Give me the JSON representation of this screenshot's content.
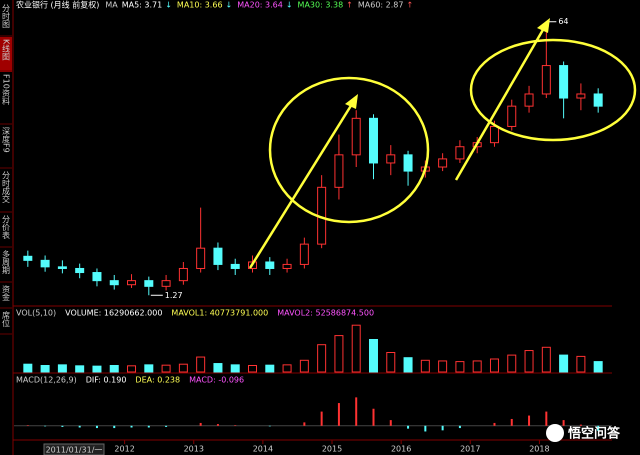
{
  "app": {
    "sidebar": [
      "分时图",
      "K线图",
      "F10资料",
      "深度F9",
      "分时成交",
      "分价表",
      "多周期",
      "资金",
      "席位"
    ],
    "header": {
      "title": "农业银行 (月线 前复权)",
      "ma_label": "MA",
      "items": [
        {
          "text": "MA5: 3.71",
          "color": "#ffffff",
          "arrow": "↓",
          "arrow_color": "#54fcfc"
        },
        {
          "text": "MA10: 3.66",
          "color": "#ffff54",
          "arrow": "↓",
          "arrow_color": "#54fcfc"
        },
        {
          "text": "MA20: 3.64",
          "color": "#ff54ff",
          "arrow": "↓",
          "arrow_color": "#54fcfc"
        },
        {
          "text": "MA30: 3.38",
          "color": "#54ff54",
          "arrow": "↑",
          "arrow_color": "#ff5454"
        },
        {
          "text": "MA60: 2.87",
          "color": "#cccccc",
          "arrow": "↑",
          "arrow_color": "#ff5454"
        }
      ]
    },
    "cursor_date": "2011/01/31/一",
    "watermark": "悟空问答"
  },
  "chart_data": {
    "type": "candlestick",
    "x": [
      2010.6,
      2010.85,
      2011.1,
      2011.35,
      2011.6,
      2011.85,
      2012.1,
      2012.35,
      2012.6,
      2012.85,
      2013.1,
      2013.35,
      2013.6,
      2013.85,
      2014.1,
      2014.35,
      2014.6,
      2014.85,
      2015.1,
      2015.35,
      2015.6,
      2015.85,
      2016.1,
      2016.35,
      2016.6,
      2016.85,
      2017.1,
      2017.35,
      2017.6,
      2017.85,
      2018.1,
      2018.35,
      2018.6,
      2018.85
    ],
    "open": [
      1.75,
      1.7,
      1.62,
      1.6,
      1.55,
      1.45,
      1.4,
      1.45,
      1.38,
      1.45,
      1.6,
      1.85,
      1.65,
      1.6,
      1.68,
      1.6,
      1.65,
      1.9,
      2.6,
      3.0,
      3.45,
      2.9,
      3.0,
      2.8,
      2.85,
      2.95,
      3.1,
      3.15,
      3.35,
      3.6,
      3.75,
      4.1,
      3.7,
      3.75
    ],
    "high": [
      1.82,
      1.76,
      1.7,
      1.66,
      1.6,
      1.52,
      1.53,
      1.5,
      1.52,
      1.68,
      2.35,
      1.92,
      1.72,
      1.76,
      1.74,
      1.72,
      1.98,
      2.75,
      3.25,
      3.55,
      3.5,
      3.12,
      3.05,
      2.93,
      3.02,
      3.18,
      3.22,
      3.42,
      3.68,
      3.85,
      4.64,
      4.15,
      3.88,
      3.82
    ],
    "low": [
      1.62,
      1.56,
      1.54,
      1.48,
      1.38,
      1.34,
      1.36,
      1.27,
      1.33,
      1.4,
      1.55,
      1.58,
      1.52,
      1.55,
      1.52,
      1.55,
      1.6,
      1.85,
      2.45,
      2.85,
      2.7,
      2.75,
      2.62,
      2.72,
      2.8,
      2.9,
      3.02,
      3.1,
      3.3,
      3.52,
      3.7,
      3.45,
      3.55,
      3.52
    ],
    "close": [
      1.7,
      1.62,
      1.6,
      1.55,
      1.45,
      1.4,
      1.45,
      1.38,
      1.45,
      1.6,
      1.85,
      1.65,
      1.6,
      1.68,
      1.6,
      1.65,
      1.9,
      2.6,
      3.0,
      3.45,
      2.9,
      3.0,
      2.8,
      2.85,
      2.95,
      3.1,
      3.15,
      3.35,
      3.6,
      3.75,
      4.1,
      3.7,
      3.75,
      3.6
    ],
    "up_color": "#ff3232",
    "down_color": "#54fcfc",
    "xlim": [
      2010.4,
      2019.05
    ],
    "xticks": [
      2012,
      2013,
      2014,
      2015,
      2016,
      2017,
      2018
    ],
    "ylim": [
      1.15,
      4.76
    ],
    "low_marker": 1.27,
    "high_annotation": "64",
    "volume": {
      "header": [
        {
          "text": "VOL(5,10)",
          "color": "#cccccc"
        },
        {
          "text": "VOLUME: 16290662.000",
          "color": "#ffffff"
        },
        {
          "text": "MAVOL1: 40773791.000",
          "color": "#ffff54"
        },
        {
          "text": "MAVOL2: 52586874.500",
          "color": "#ff54ff"
        }
      ],
      "values": [
        120000000,
        100000000,
        110000000,
        95000000,
        90000000,
        100000000,
        95000000,
        110000000,
        105000000,
        120000000,
        230000000,
        130000000,
        110000000,
        100000000,
        105000000,
        110000000,
        180000000,
        420000000,
        560000000,
        720000000,
        500000000,
        300000000,
        220000000,
        180000000,
        170000000,
        160000000,
        170000000,
        200000000,
        260000000,
        330000000,
        380000000,
        260000000,
        240000000,
        160000000
      ],
      "ylim": [
        0,
        800000000
      ]
    },
    "macd": {
      "header": [
        {
          "text": "MACD(12,26,9)",
          "color": "#cccccc"
        },
        {
          "text": "DIF: 0.190",
          "color": "#ffffff"
        },
        {
          "text": "DEA: 0.238",
          "color": "#ffff54"
        },
        {
          "text": "MACD: -0.096",
          "color": "#ff54ff"
        }
      ],
      "values": [
        0.01,
        -0.01,
        -0.02,
        -0.03,
        -0.04,
        -0.04,
        -0.03,
        -0.03,
        -0.02,
        0.0,
        0.05,
        0.03,
        0.01,
        0.0,
        -0.01,
        0.0,
        0.06,
        0.25,
        0.4,
        0.5,
        0.3,
        0.1,
        -0.05,
        -0.1,
        -0.08,
        -0.04,
        0.0,
        0.05,
        0.12,
        0.18,
        0.25,
        0.1,
        0.02,
        -0.09
      ],
      "ylim": [
        -0.25,
        0.7
      ]
    }
  }
}
